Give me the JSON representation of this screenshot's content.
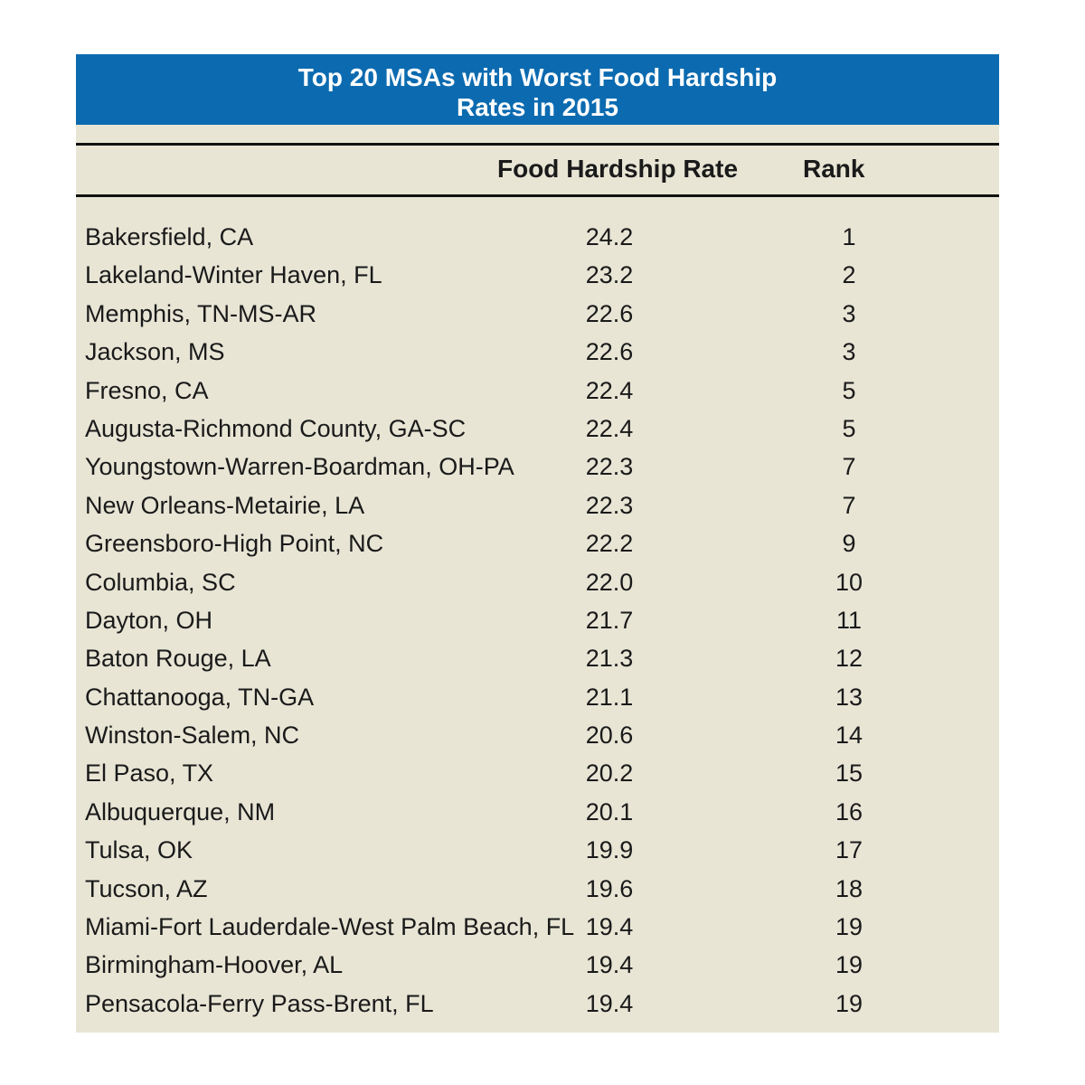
{
  "table": {
    "title_line_1": "Top 20 MSAs with Worst Food Hardship",
    "title_line_2": "Rates in 2015",
    "col_rate": "Food Hardship Rate",
    "col_rank": "Rank",
    "colors": {
      "title_bar": "#0c6bb0",
      "background": "#e8e5d5",
      "rule": "#111111"
    }
  },
  "chart_data": {
    "type": "table",
    "title": "Top 20 MSAs with Worst Food Hardship Rates in 2015",
    "columns": [
      "",
      "Food Hardship Rate",
      "Rank"
    ],
    "rows": [
      {
        "msa": "Bakersfield, CA",
        "rate": "24.2",
        "rank": "1"
      },
      {
        "msa": "Lakeland-Winter Haven, FL",
        "rate": "23.2",
        "rank": "2"
      },
      {
        "msa": "Memphis, TN-MS-AR",
        "rate": "22.6",
        "rank": "3"
      },
      {
        "msa": "Jackson, MS",
        "rate": "22.6",
        "rank": "3"
      },
      {
        "msa": "Fresno, CA",
        "rate": "22.4",
        "rank": "5"
      },
      {
        "msa": "Augusta-Richmond County, GA-SC",
        "rate": "22.4",
        "rank": "5"
      },
      {
        "msa": "Youngstown-Warren-Boardman, OH-PA",
        "rate": "22.3",
        "rank": "7"
      },
      {
        "msa": "New Orleans-Metairie, LA",
        "rate": "22.3",
        "rank": "7"
      },
      {
        "msa": "Greensboro-High Point, NC",
        "rate": "22.2",
        "rank": "9"
      },
      {
        "msa": "Columbia, SC",
        "rate": "22.0",
        "rank": "10"
      },
      {
        "msa": "Dayton, OH",
        "rate": "21.7",
        "rank": "11"
      },
      {
        "msa": "Baton Rouge, LA",
        "rate": "21.3",
        "rank": "12"
      },
      {
        "msa": "Chattanooga, TN-GA",
        "rate": "21.1",
        "rank": "13"
      },
      {
        "msa": "Winston-Salem, NC",
        "rate": "20.6",
        "rank": "14"
      },
      {
        "msa": "El Paso, TX",
        "rate": "20.2",
        "rank": "15"
      },
      {
        "msa": "Albuquerque, NM",
        "rate": "20.1",
        "rank": "16"
      },
      {
        "msa": "Tulsa, OK",
        "rate": "19.9",
        "rank": "17"
      },
      {
        "msa": "Tucson, AZ",
        "rate": "19.6",
        "rank": "18"
      },
      {
        "msa": "Miami-Fort Lauderdale-West Palm Beach, FL",
        "rate": "19.4",
        "rank": "19"
      },
      {
        "msa": "Birmingham-Hoover, AL",
        "rate": "19.4",
        "rank": "19"
      },
      {
        "msa": "Pensacola-Ferry Pass-Brent, FL",
        "rate": "19.4",
        "rank": "19"
      }
    ]
  }
}
